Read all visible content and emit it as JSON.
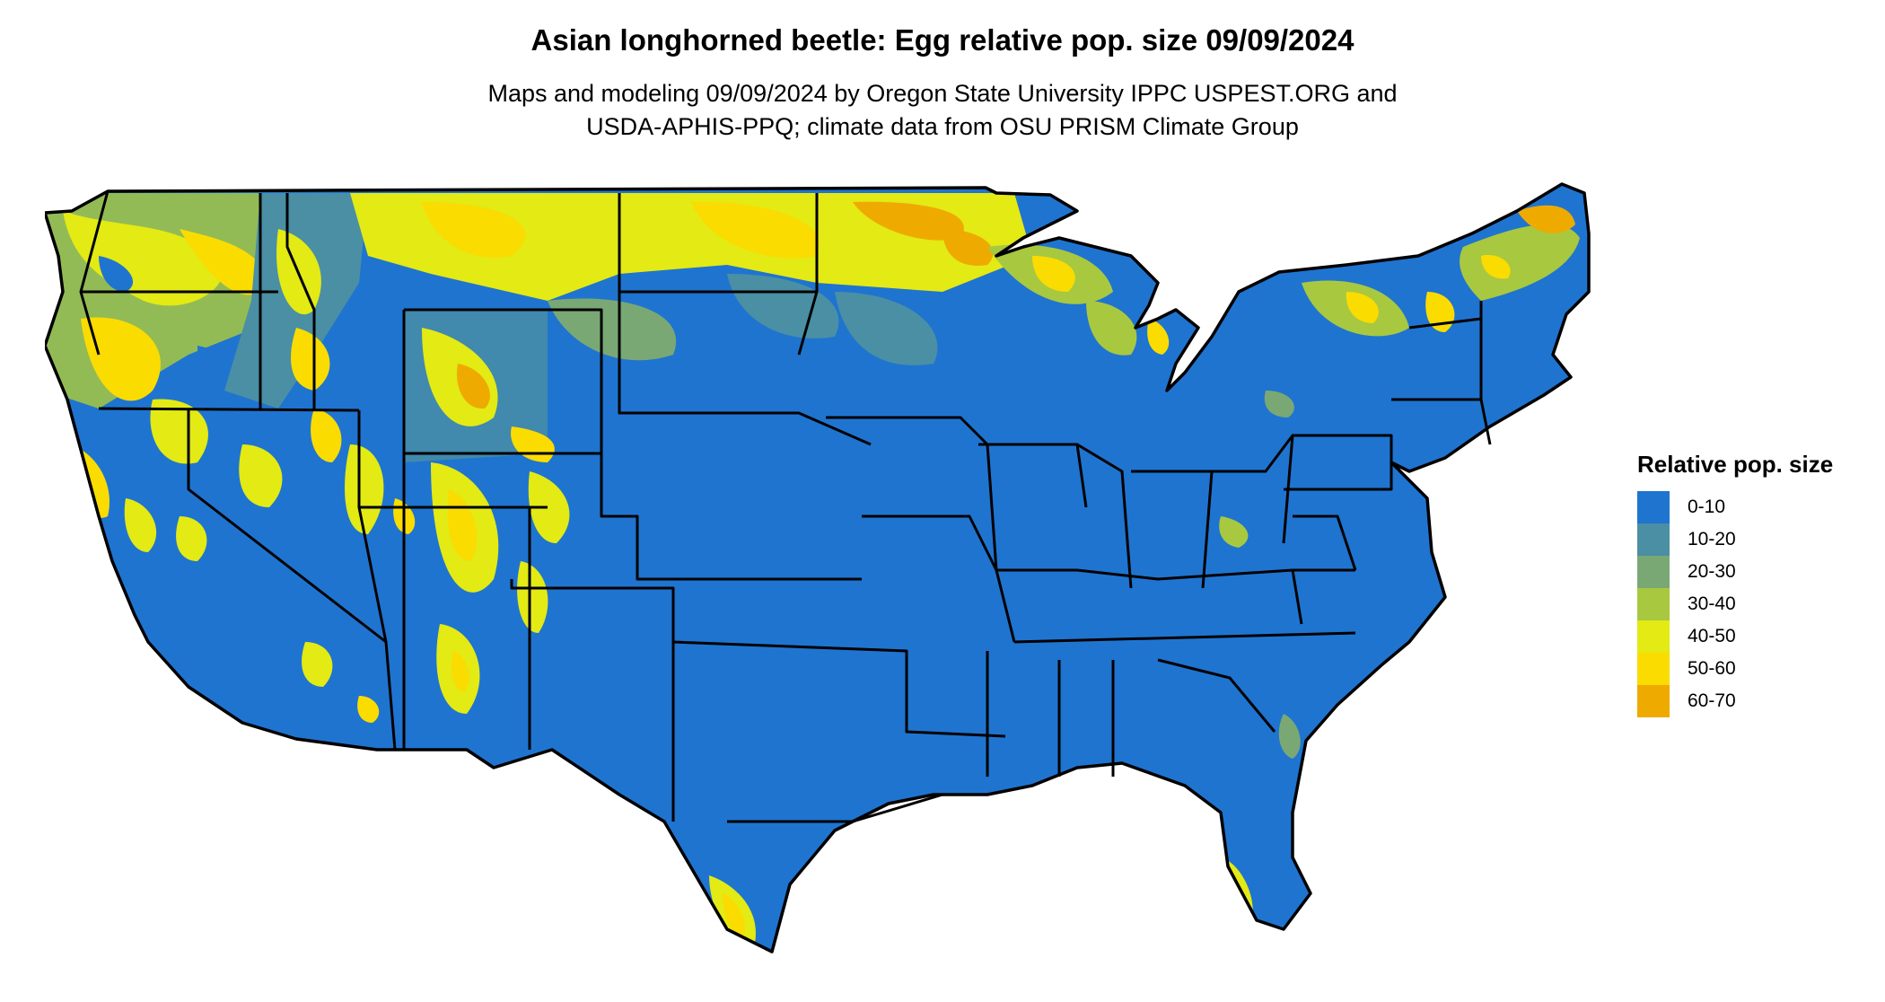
{
  "title": "Asian longhorned beetle: Egg relative pop. size 09/09/2024",
  "subtitle_lines": [
    "Maps and modeling 09/09/2024 by Oregon State University IPPC USPEST.ORG and",
    "USDA-APHIS-PPQ; climate data from OSU PRISM Climate Group"
  ],
  "legend": {
    "title": "Relative pop. size",
    "items": [
      {
        "label": "0-10",
        "color": "#1f74d0"
      },
      {
        "label": "10-20",
        "color": "#4a8fa4"
      },
      {
        "label": "20-30",
        "color": "#7aa874"
      },
      {
        "label": "30-40",
        "color": "#a8c840"
      },
      {
        "label": "40-50",
        "color": "#e3ea14"
      },
      {
        "label": "50-60",
        "color": "#fadc00"
      },
      {
        "label": "60-70",
        "color": "#efaa00"
      }
    ]
  },
  "map": {
    "region": "contiguous-united-states",
    "base_color": "#1f74d0",
    "border_color": "#000000"
  }
}
